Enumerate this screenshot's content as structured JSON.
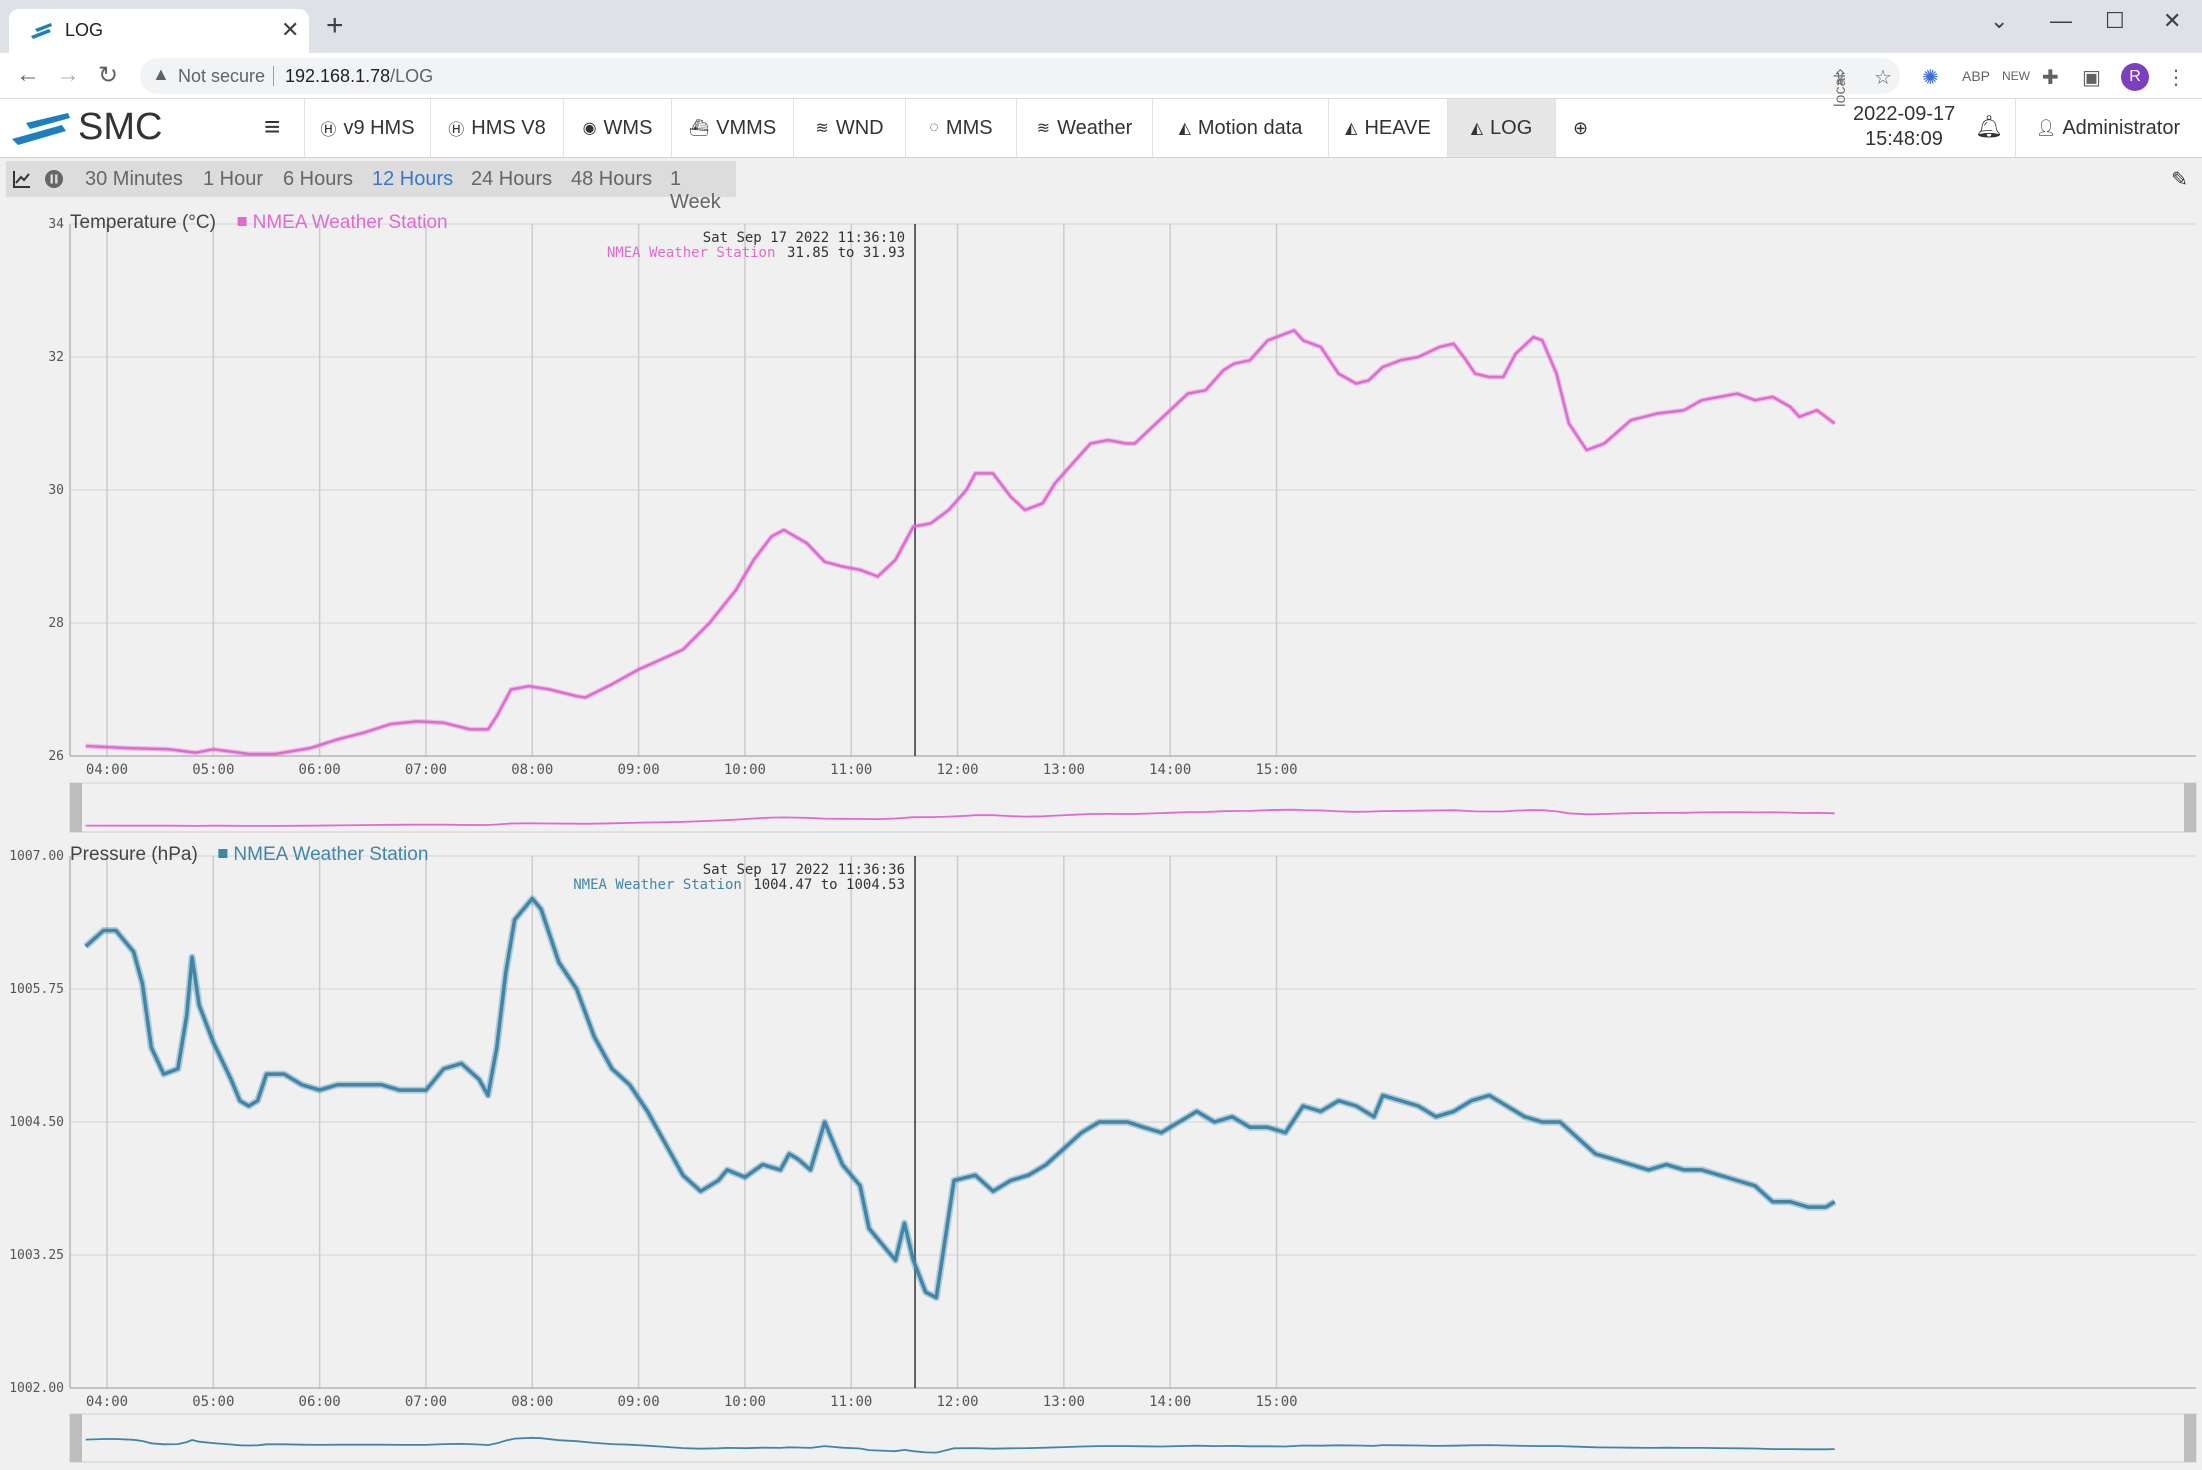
{
  "browser": {
    "tab_title": "LOG",
    "security_label": "Not secure",
    "url_host": "192.168.1.78",
    "url_path": "/LOG",
    "avatar_letter": "R"
  },
  "app": {
    "brand": "SMC",
    "nav": [
      {
        "label": "v9 HMS",
        "icon": "h-circle-icon"
      },
      {
        "label": "HMS V8",
        "icon": "h-circle-icon"
      },
      {
        "label": "WMS",
        "icon": "globe-icon"
      },
      {
        "label": "VMMS",
        "icon": "ship-icon"
      },
      {
        "label": "WND",
        "icon": "wind-icon"
      },
      {
        "label": "MMS",
        "icon": "motion-icon"
      },
      {
        "label": "Weather",
        "icon": "wind-icon"
      },
      {
        "label": "Motion data",
        "icon": "area-chart-icon"
      },
      {
        "label": "HEAVE",
        "icon": "area-chart-icon"
      },
      {
        "label": "LOG",
        "icon": "area-chart-icon",
        "active": true
      }
    ],
    "clock": {
      "zone": "local",
      "date": "2022-09-17",
      "time": "15:48:09"
    },
    "user": "Administrator"
  },
  "range": {
    "options": [
      "30 Minutes",
      "1 Hour",
      "6 Hours",
      "12 Hours",
      "24 Hours",
      "48 Hours",
      "1 Week"
    ],
    "selected": "12 Hours"
  },
  "chart_data": [
    {
      "type": "line",
      "ylabel": "Temperature (°C)",
      "series_name": "NMEA Weather Station",
      "color": "#e06ad0",
      "ylim": [
        26,
        34
      ],
      "yticks": [
        "34",
        "32",
        "30",
        "28",
        "26"
      ],
      "xticks": [
        "04:00",
        "05:00",
        "06:00",
        "07:00",
        "08:00",
        "09:00",
        "10:00",
        "11:00",
        "12:00",
        "13:00",
        "14:00",
        "15:00"
      ],
      "cursor": {
        "time": "11:36",
        "label": "Sat Sep 17 2022 11:36:10",
        "series": "NMEA Weather Station",
        "value": "31.85 to 31.93"
      },
      "points": [
        [
          "03:48",
          26.15
        ],
        [
          "04:10",
          26.12
        ],
        [
          "04:35",
          26.1
        ],
        [
          "04:50",
          26.05
        ],
        [
          "05:00",
          26.1
        ],
        [
          "05:20",
          26.03
        ],
        [
          "05:35",
          26.03
        ],
        [
          "05:55",
          26.12
        ],
        [
          "06:10",
          26.25
        ],
        [
          "06:25",
          26.35
        ],
        [
          "06:40",
          26.48
        ],
        [
          "06:55",
          26.52
        ],
        [
          "07:10",
          26.5
        ],
        [
          "07:25",
          26.4
        ],
        [
          "07:35",
          26.4
        ],
        [
          "07:40",
          26.6
        ],
        [
          "07:48",
          27.0
        ],
        [
          "07:58",
          27.05
        ],
        [
          "08:10",
          27.0
        ],
        [
          "08:25",
          26.9
        ],
        [
          "08:30",
          26.88
        ],
        [
          "08:45",
          27.08
        ],
        [
          "09:00",
          27.3
        ],
        [
          "09:10",
          27.42
        ],
        [
          "09:25",
          27.6
        ],
        [
          "09:40",
          28.0
        ],
        [
          "09:55",
          28.5
        ],
        [
          "10:05",
          28.95
        ],
        [
          "10:15",
          29.3
        ],
        [
          "10:22",
          29.4
        ],
        [
          "10:35",
          29.2
        ],
        [
          "10:45",
          28.92
        ],
        [
          "10:55",
          28.85
        ],
        [
          "11:05",
          28.8
        ],
        [
          "11:15",
          28.7
        ],
        [
          "11:25",
          28.95
        ],
        [
          "11:35",
          29.45
        ],
        [
          "11:45",
          29.5
        ],
        [
          "11:55",
          29.7
        ],
        [
          "12:05",
          30.0
        ],
        [
          "12:10",
          30.25
        ],
        [
          "12:20",
          30.25
        ],
        [
          "12:30",
          29.9
        ],
        [
          "12:38",
          29.7
        ],
        [
          "12:48",
          29.8
        ],
        [
          "12:55",
          30.1
        ],
        [
          "13:05",
          30.4
        ],
        [
          "13:15",
          30.7
        ],
        [
          "13:25",
          30.75
        ],
        [
          "13:35",
          30.7
        ],
        [
          "13:40",
          30.7
        ],
        [
          "13:50",
          30.95
        ],
        [
          "14:00",
          31.2
        ],
        [
          "14:10",
          31.45
        ],
        [
          "14:20",
          31.5
        ],
        [
          "14:30",
          31.8
        ],
        [
          "14:36",
          31.9
        ],
        [
          "14:45",
          31.95
        ],
        [
          "14:55",
          32.25
        ],
        [
          "15:05",
          32.35
        ],
        [
          "15:10",
          32.4
        ],
        [
          "15:15",
          32.25
        ],
        [
          "15:25",
          32.15
        ],
        [
          "15:35",
          31.75
        ],
        [
          "15:45",
          31.6
        ],
        [
          "15:52",
          31.65
        ],
        [
          "16:00",
          31.85
        ],
        [
          "16:10",
          31.95
        ],
        [
          "16:20",
          32.0
        ],
        [
          "16:32",
          32.15
        ],
        [
          "16:40",
          32.2
        ],
        [
          "16:47",
          31.95
        ],
        [
          "16:52",
          31.75
        ],
        [
          "17:00",
          31.7
        ],
        [
          "17:08",
          31.7
        ],
        [
          "17:15",
          32.05
        ],
        [
          "17:25",
          32.3
        ],
        [
          "17:30",
          32.25
        ],
        [
          "17:38",
          31.75
        ],
        [
          "17:45",
          31.0
        ],
        [
          "17:55",
          30.6
        ],
        [
          "18:05",
          30.7
        ],
        [
          "18:20",
          31.05
        ],
        [
          "18:35",
          31.15
        ],
        [
          "18:50",
          31.2
        ],
        [
          "19:00",
          31.35
        ],
        [
          "19:10",
          31.4
        ],
        [
          "19:20",
          31.45
        ],
        [
          "19:30",
          31.35
        ],
        [
          "19:40",
          31.4
        ],
        [
          "19:50",
          31.25
        ],
        [
          "19:55",
          31.1
        ],
        [
          "20:05",
          31.2
        ],
        [
          "20:15",
          31.0
        ]
      ]
    },
    {
      "type": "line",
      "ylabel": "Pressure (hPa)",
      "series_name": "NMEA Weather Station",
      "color": "#3f86a8",
      "ylim": [
        1002.0,
        1007.0
      ],
      "yticks": [
        "1007.00",
        "1005.75",
        "1004.50",
        "1003.25",
        "1002.00"
      ],
      "xticks": [
        "04:00",
        "05:00",
        "06:00",
        "07:00",
        "08:00",
        "09:00",
        "10:00",
        "11:00",
        "12:00",
        "13:00",
        "14:00",
        "15:00"
      ],
      "cursor": {
        "time": "11:36",
        "label": "Sat Sep 17 2022 11:36:36",
        "series": "NMEA Weather Station",
        "value": "1004.47 to 1004.53"
      },
      "points": [
        [
          "03:48",
          1006.15
        ],
        [
          "03:58",
          1006.3
        ],
        [
          "04:05",
          1006.3
        ],
        [
          "04:15",
          1006.1
        ],
        [
          "04:20",
          1005.8
        ],
        [
          "04:25",
          1005.2
        ],
        [
          "04:32",
          1004.95
        ],
        [
          "04:40",
          1005.0
        ],
        [
          "04:45",
          1005.5
        ],
        [
          "04:48",
          1006.05
        ],
        [
          "04:52",
          1005.6
        ],
        [
          "05:00",
          1005.25
        ],
        [
          "05:10",
          1004.9
        ],
        [
          "05:15",
          1004.7
        ],
        [
          "05:20",
          1004.65
        ],
        [
          "05:25",
          1004.7
        ],
        [
          "05:30",
          1004.95
        ],
        [
          "05:40",
          1004.95
        ],
        [
          "05:50",
          1004.85
        ],
        [
          "06:00",
          1004.8
        ],
        [
          "06:10",
          1004.85
        ],
        [
          "06:25",
          1004.85
        ],
        [
          "06:35",
          1004.85
        ],
        [
          "06:45",
          1004.8
        ],
        [
          "07:00",
          1004.8
        ],
        [
          "07:10",
          1005.0
        ],
        [
          "07:20",
          1005.05
        ],
        [
          "07:30",
          1004.9
        ],
        [
          "07:35",
          1004.75
        ],
        [
          "07:40",
          1005.2
        ],
        [
          "07:45",
          1005.9
        ],
        [
          "07:50",
          1006.4
        ],
        [
          "08:00",
          1006.6
        ],
        [
          "08:05",
          1006.5
        ],
        [
          "08:15",
          1006.0
        ],
        [
          "08:25",
          1005.75
        ],
        [
          "08:35",
          1005.3
        ],
        [
          "08:45",
          1005.0
        ],
        [
          "08:55",
          1004.85
        ],
        [
          "09:05",
          1004.6
        ],
        [
          "09:15",
          1004.3
        ],
        [
          "09:25",
          1004.0
        ],
        [
          "09:35",
          1003.85
        ],
        [
          "09:45",
          1003.95
        ],
        [
          "09:50",
          1004.05
        ],
        [
          "10:00",
          1003.98
        ],
        [
          "10:10",
          1004.1
        ],
        [
          "10:20",
          1004.05
        ],
        [
          "10:25",
          1004.2
        ],
        [
          "10:30",
          1004.15
        ],
        [
          "10:37",
          1004.05
        ],
        [
          "10:45",
          1004.5
        ],
        [
          "10:55",
          1004.1
        ],
        [
          "11:05",
          1003.9
        ],
        [
          "11:10",
          1003.5
        ],
        [
          "11:20",
          1003.3
        ],
        [
          "11:25",
          1003.2
        ],
        [
          "11:30",
          1003.55
        ],
        [
          "11:35",
          1003.2
        ],
        [
          "11:42",
          1002.9
        ],
        [
          "11:48",
          1002.85
        ],
        [
          "11:53",
          1003.4
        ],
        [
          "11:58",
          1003.95
        ],
        [
          "12:10",
          1004.0
        ],
        [
          "12:20",
          1003.85
        ],
        [
          "12:30",
          1003.95
        ],
        [
          "12:40",
          1004.0
        ],
        [
          "12:50",
          1004.1
        ],
        [
          "13:00",
          1004.25
        ],
        [
          "13:10",
          1004.4
        ],
        [
          "13:20",
          1004.5
        ],
        [
          "13:30",
          1004.5
        ],
        [
          "13:36",
          1004.5
        ],
        [
          "13:45",
          1004.45
        ],
        [
          "13:55",
          1004.4
        ],
        [
          "14:05",
          1004.5
        ],
        [
          "14:15",
          1004.6
        ],
        [
          "14:25",
          1004.5
        ],
        [
          "14:35",
          1004.55
        ],
        [
          "14:45",
          1004.45
        ],
        [
          "14:55",
          1004.45
        ],
        [
          "15:05",
          1004.4
        ],
        [
          "15:15",
          1004.65
        ],
        [
          "15:25",
          1004.6
        ],
        [
          "15:35",
          1004.7
        ],
        [
          "15:45",
          1004.65
        ],
        [
          "15:55",
          1004.55
        ],
        [
          "16:00",
          1004.75
        ],
        [
          "16:10",
          1004.7
        ],
        [
          "16:20",
          1004.65
        ],
        [
          "16:30",
          1004.55
        ],
        [
          "16:40",
          1004.6
        ],
        [
          "16:50",
          1004.7
        ],
        [
          "17:00",
          1004.75
        ],
        [
          "17:10",
          1004.65
        ],
        [
          "17:20",
          1004.55
        ],
        [
          "17:30",
          1004.5
        ],
        [
          "17:40",
          1004.5
        ],
        [
          "17:50",
          1004.35
        ],
        [
          "18:00",
          1004.2
        ],
        [
          "18:10",
          1004.15
        ],
        [
          "18:20",
          1004.1
        ],
        [
          "18:30",
          1004.05
        ],
        [
          "18:40",
          1004.1
        ],
        [
          "18:50",
          1004.05
        ],
        [
          "19:00",
          1004.05
        ],
        [
          "19:10",
          1004.0
        ],
        [
          "19:20",
          1003.95
        ],
        [
          "19:30",
          1003.9
        ],
        [
          "19:40",
          1003.75
        ],
        [
          "19:50",
          1003.75
        ],
        [
          "20:00",
          1003.7
        ],
        [
          "20:10",
          1003.7
        ],
        [
          "20:15",
          1003.75
        ]
      ]
    }
  ]
}
